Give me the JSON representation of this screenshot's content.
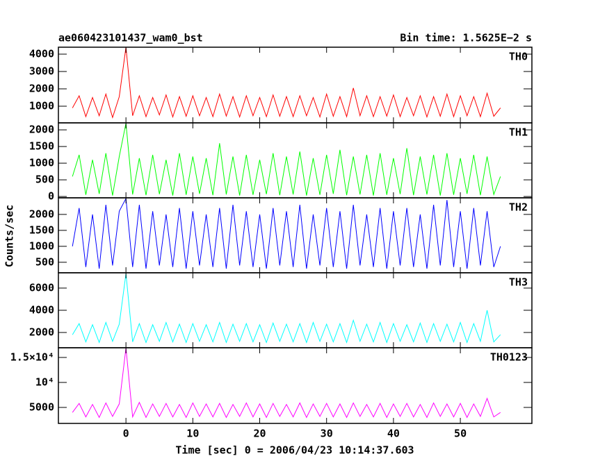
{
  "ylabel": "Counts/sec",
  "chart_data": [
    {
      "type": "line",
      "title": "ae060423101437_wam0_bst",
      "subtitle": "Bin time: 1.5625E−2 s",
      "annotation": "TH0",
      "series": [
        {
          "name": "TH0",
          "color": "#ff0000"
        }
      ],
      "x": [
        -8,
        -7,
        -6,
        -5,
        -4,
        -3,
        -2,
        -1,
        0,
        1,
        2,
        3,
        4,
        5,
        6,
        7,
        8,
        9,
        10,
        11,
        12,
        13,
        14,
        15,
        16,
        17,
        18,
        19,
        20,
        21,
        22,
        23,
        24,
        25,
        26,
        27,
        28,
        29,
        30,
        31,
        32,
        33,
        34,
        35,
        36,
        37,
        38,
        39,
        40,
        41,
        42,
        43,
        44,
        45,
        46,
        47,
        48,
        49,
        50,
        51,
        52,
        53,
        54,
        55,
        56
      ],
      "values": [
        900,
        1600,
        400,
        1500,
        450,
        1700,
        350,
        1550,
        4400,
        450,
        1600,
        400,
        1500,
        500,
        1650,
        380,
        1550,
        420,
        1600,
        450,
        1500,
        400,
        1700,
        430,
        1550,
        380,
        1600,
        450,
        1500,
        400,
        1650,
        420,
        1550,
        400,
        1600,
        450,
        1500,
        380,
        1700,
        420,
        1550,
        400,
        2050,
        450,
        1600,
        400,
        1550,
        430,
        1650,
        400,
        1500,
        450,
        1600,
        380,
        1550,
        420,
        1700,
        400,
        1600,
        450,
        1550,
        400,
        1750,
        420,
        900
      ],
      "xlim": [
        -10.1,
        60.7
      ],
      "xticks": [
        0,
        10,
        20,
        30,
        40,
        50
      ],
      "ylim": [
        40,
        4400
      ],
      "yticks": [
        1000,
        2000,
        3000,
        4000
      ]
    },
    {
      "type": "line",
      "annotation": "TH1",
      "series": [
        {
          "name": "TH1",
          "color": "#00ff00"
        }
      ],
      "x": [
        -8,
        -7,
        -6,
        -5,
        -4,
        -3,
        -2,
        -1,
        0,
        1,
        2,
        3,
        4,
        5,
        6,
        7,
        8,
        9,
        10,
        11,
        12,
        13,
        14,
        15,
        16,
        17,
        18,
        19,
        20,
        21,
        22,
        23,
        24,
        25,
        26,
        27,
        28,
        29,
        30,
        31,
        32,
        33,
        34,
        35,
        36,
        37,
        38,
        39,
        40,
        41,
        42,
        43,
        44,
        45,
        46,
        47,
        48,
        49,
        50,
        51,
        52,
        53,
        54,
        55,
        56
      ],
      "values": [
        600,
        1250,
        50,
        1100,
        80,
        1300,
        30,
        1200,
        2200,
        60,
        1150,
        40,
        1250,
        70,
        1100,
        30,
        1300,
        50,
        1200,
        80,
        1150,
        40,
        1600,
        60,
        1200,
        30,
        1250,
        50,
        1100,
        70,
        1300,
        40,
        1200,
        60,
        1350,
        30,
        1150,
        50,
        1250,
        80,
        1400,
        40,
        1200,
        60,
        1250,
        30,
        1300,
        50,
        1150,
        70,
        1450,
        40,
        1200,
        60,
        1250,
        30,
        1300,
        50,
        1150,
        80,
        1250,
        40,
        1200,
        60,
        600
      ],
      "xlim": [
        -10.1,
        60.7
      ],
      "xticks": [
        0,
        10,
        20,
        30,
        40,
        50
      ],
      "ylim": [
        -40,
        2210
      ],
      "yticks": [
        0,
        500,
        1000,
        1500,
        2000
      ]
    },
    {
      "type": "line",
      "annotation": "TH2",
      "series": [
        {
          "name": "TH2",
          "color": "#0000ff"
        }
      ],
      "x": [
        -8,
        -7,
        -6,
        -5,
        -4,
        -3,
        -2,
        -1,
        0,
        1,
        2,
        3,
        4,
        5,
        6,
        7,
        8,
        9,
        10,
        11,
        12,
        13,
        14,
        15,
        16,
        17,
        18,
        19,
        20,
        21,
        22,
        23,
        24,
        25,
        26,
        27,
        28,
        29,
        30,
        31,
        32,
        33,
        34,
        35,
        36,
        37,
        38,
        39,
        40,
        41,
        42,
        43,
        44,
        45,
        46,
        47,
        48,
        49,
        50,
        51,
        52,
        53,
        54,
        55,
        56
      ],
      "values": [
        1000,
        2200,
        350,
        2000,
        300,
        2300,
        400,
        2100,
        2500,
        350,
        2300,
        300,
        2100,
        400,
        2000,
        350,
        2200,
        300,
        2100,
        400,
        2000,
        350,
        2200,
        300,
        2300,
        400,
        2100,
        350,
        2000,
        300,
        2200,
        400,
        2100,
        350,
        2300,
        300,
        2000,
        400,
        2200,
        350,
        2100,
        300,
        2300,
        400,
        2000,
        350,
        2200,
        300,
        2100,
        400,
        2200,
        350,
        2000,
        300,
        2300,
        400,
        2450,
        350,
        2100,
        300,
        2200,
        400,
        2100,
        350,
        1000
      ],
      "xlim": [
        -10.1,
        60.7
      ],
      "xticks": [
        0,
        10,
        20,
        30,
        40,
        50
      ],
      "ylim": [
        170,
        2520
      ],
      "yticks": [
        500,
        1000,
        1500,
        2000
      ]
    },
    {
      "type": "line",
      "annotation": "TH3",
      "series": [
        {
          "name": "TH3",
          "color": "#00ffff"
        }
      ],
      "x": [
        -8,
        -7,
        -6,
        -5,
        -4,
        -3,
        -2,
        -1,
        0,
        1,
        2,
        3,
        4,
        5,
        6,
        7,
        8,
        9,
        10,
        11,
        12,
        13,
        14,
        15,
        16,
        17,
        18,
        19,
        20,
        21,
        22,
        23,
        24,
        25,
        26,
        27,
        28,
        29,
        30,
        31,
        32,
        33,
        34,
        35,
        36,
        37,
        38,
        39,
        40,
        41,
        42,
        43,
        44,
        45,
        46,
        47,
        48,
        49,
        50,
        51,
        52,
        53,
        54,
        55,
        56
      ],
      "values": [
        1800,
        2800,
        1150,
        2700,
        1100,
        2900,
        1200,
        2750,
        7300,
        1150,
        2800,
        1100,
        2700,
        1200,
        2900,
        1150,
        2750,
        1100,
        2800,
        1200,
        2700,
        1150,
        2900,
        1100,
        2750,
        1200,
        2800,
        1150,
        2700,
        1100,
        2850,
        1200,
        2750,
        1150,
        2800,
        1100,
        2900,
        1200,
        2750,
        1150,
        2800,
        1100,
        3100,
        1200,
        2750,
        1150,
        2900,
        1100,
        2800,
        1200,
        2700,
        1150,
        2850,
        1100,
        2800,
        1200,
        2750,
        1150,
        2900,
        1100,
        2800,
        1200,
        4000,
        1150,
        1800
      ],
      "xlim": [
        -10.1,
        60.7
      ],
      "xticks": [
        0,
        10,
        20,
        30,
        40,
        50
      ],
      "ylim": [
        625,
        7375
      ],
      "yticks": [
        2000,
        4000,
        6000
      ]
    },
    {
      "type": "line",
      "annotation": "TH0123",
      "xlabel": "Time [sec] 0 = 2006/04/23 10:14:37.603",
      "series": [
        {
          "name": "TH0123",
          "color": "#ff00ff"
        }
      ],
      "x": [
        -8,
        -7,
        -6,
        -5,
        -4,
        -3,
        -2,
        -1,
        0,
        1,
        2,
        3,
        4,
        5,
        6,
        7,
        8,
        9,
        10,
        11,
        12,
        13,
        14,
        15,
        16,
        17,
        18,
        19,
        20,
        21,
        22,
        23,
        24,
        25,
        26,
        27,
        28,
        29,
        30,
        31,
        32,
        33,
        34,
        35,
        36,
        37,
        38,
        39,
        40,
        41,
        42,
        43,
        44,
        45,
        46,
        47,
        48,
        49,
        50,
        51,
        52,
        53,
        54,
        55,
        56
      ],
      "values": [
        4000,
        5800,
        3100,
        5600,
        3000,
        5900,
        3200,
        5700,
        16900,
        3100,
        6000,
        3000,
        5700,
        3200,
        5800,
        3100,
        5600,
        3000,
        5900,
        3200,
        5700,
        3100,
        5800,
        3000,
        5600,
        3200,
        5900,
        3100,
        5700,
        3000,
        5800,
        3200,
        5600,
        3100,
        5900,
        3000,
        5700,
        3200,
        5800,
        3100,
        5700,
        3000,
        5900,
        3200,
        5600,
        3100,
        5800,
        3000,
        5700,
        3200,
        5800,
        3100,
        5600,
        3000,
        5900,
        3200,
        5700,
        3100,
        5800,
        3000,
        5700,
        3200,
        6800,
        3100,
        4000
      ],
      "xlim": [
        -10.1,
        60.7
      ],
      "xticks": [
        0,
        10,
        20,
        30,
        40,
        50
      ],
      "ylim": [
        1800,
        16940
      ],
      "yticks": [
        5000,
        {
          "value": 10000,
          "label": "10⁴"
        },
        {
          "value": 15000,
          "label": "1.5×10⁴"
        }
      ]
    }
  ]
}
